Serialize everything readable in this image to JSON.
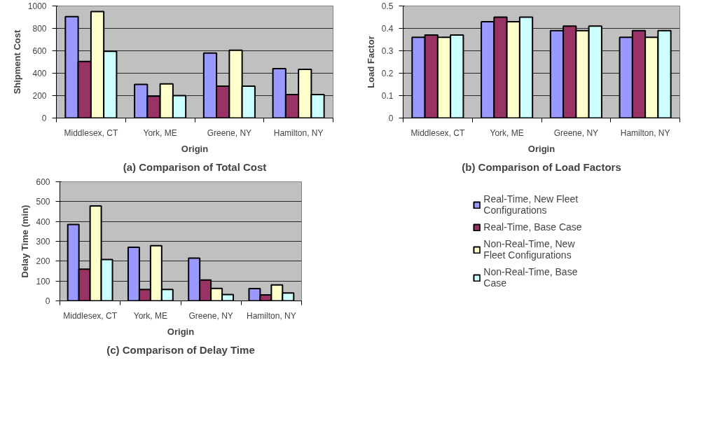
{
  "chart_data": [
    {
      "type": "bar",
      "title": "(a) Comparison of Total Cost",
      "xlabel": "Origin",
      "ylabel": "Shipment Cost",
      "categories": [
        "Middlesex, CT",
        "York, ME",
        "Greene, NY",
        "Hamilton, NY"
      ],
      "series": [
        {
          "color": "#9999ff",
          "values": [
            905,
            300,
            580,
            440
          ]
        },
        {
          "color": "#993366",
          "values": [
            505,
            195,
            285,
            210
          ]
        },
        {
          "color": "#ffffcc",
          "values": [
            950,
            305,
            605,
            435
          ]
        },
        {
          "color": "#ccffff",
          "values": [
            595,
            200,
            285,
            210
          ]
        }
      ],
      "ylim": [
        0,
        1000
      ],
      "yticks": [
        0,
        200,
        400,
        600,
        800,
        1000
      ],
      "grid": "y"
    },
    {
      "type": "bar",
      "title": "(b) Comparison of Load Factors",
      "xlabel": "Origin",
      "ylabel": "Load Factor",
      "categories": [
        "Middlesex, CT",
        "York, ME",
        "Greene, NY",
        "Hamilton, NY"
      ],
      "series": [
        {
          "color": "#9999ff",
          "values": [
            0.36,
            0.43,
            0.39,
            0.36
          ]
        },
        {
          "color": "#993366",
          "values": [
            0.37,
            0.45,
            0.41,
            0.39
          ]
        },
        {
          "color": "#ffffcc",
          "values": [
            0.36,
            0.43,
            0.39,
            0.36
          ]
        },
        {
          "color": "#ccffff",
          "values": [
            0.37,
            0.45,
            0.41,
            0.39
          ]
        }
      ],
      "ylim": [
        0,
        0.5
      ],
      "yticks": [
        0,
        0.1,
        0.2,
        0.3,
        0.4,
        0.5
      ],
      "grid": "y"
    },
    {
      "type": "bar",
      "title": "(c) Comparison of Delay Time",
      "xlabel": "Origin",
      "ylabel": "Delay Time (min)",
      "categories": [
        "Middlesex, CT",
        "York, ME",
        "Greene, NY",
        "Hamilton, NY"
      ],
      "series": [
        {
          "name": "Real-Time, New Fleet Configurations",
          "color": "#9999ff",
          "values": [
            385,
            270,
            215,
            62
          ]
        },
        {
          "name": "Real-Time, Base Case",
          "color": "#993366",
          "values": [
            160,
            57,
            105,
            30
          ]
        },
        {
          "name": "Non-Real-Time, New Fleet Configurations",
          "color": "#ffffcc",
          "values": [
            478,
            278,
            63,
            80
          ]
        },
        {
          "name": "Non-Real-Time, Base Case",
          "color": "#ccffff",
          "values": [
            208,
            57,
            32,
            40
          ]
        }
      ],
      "ylim": [
        0,
        600
      ],
      "yticks": [
        0,
        100,
        200,
        300,
        400,
        500,
        600
      ],
      "grid": "y",
      "legend": "right"
    }
  ]
}
